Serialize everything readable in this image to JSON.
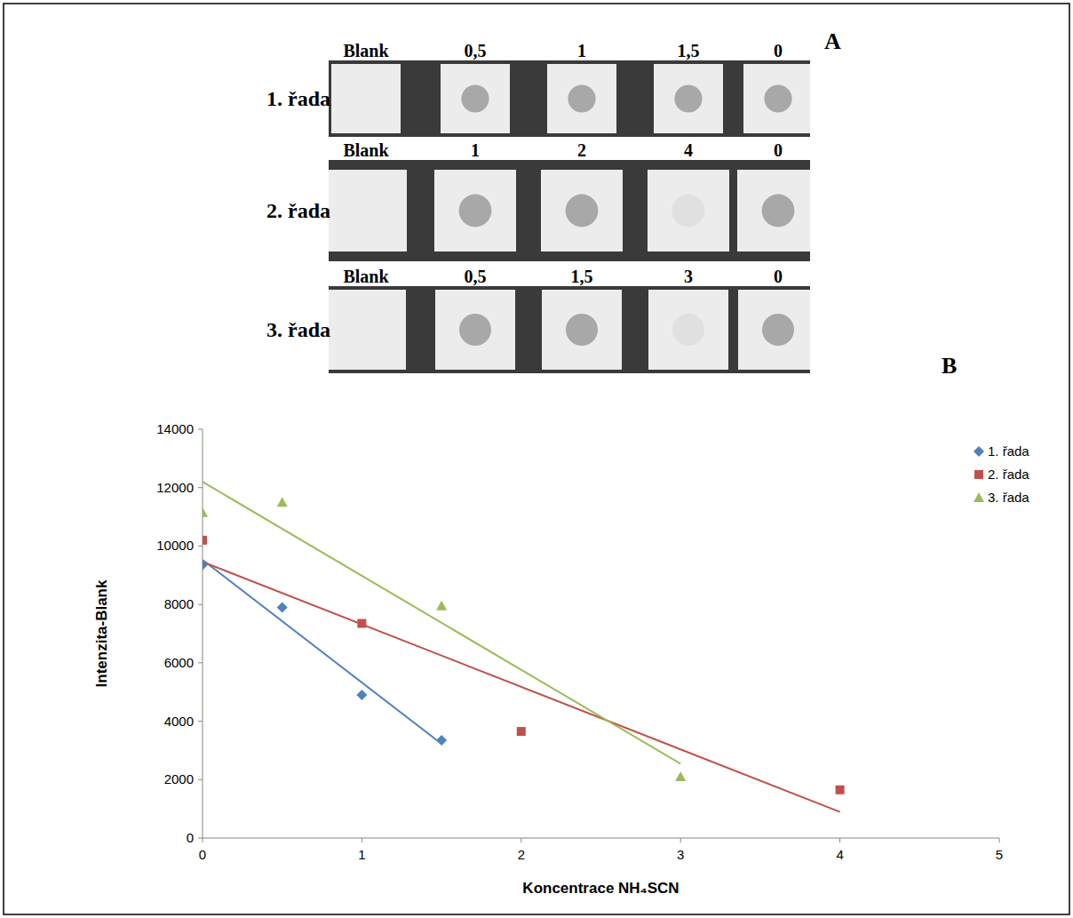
{
  "panel_letters": [
    "A",
    "B"
  ],
  "panel_a": {
    "rows": [
      {
        "name": "1. řada",
        "labels": [
          "Blank",
          "0,5",
          "1",
          "1,5",
          "0"
        ]
      },
      {
        "name": "2. řada",
        "labels": [
          "Blank",
          "1",
          "2",
          "4",
          "0"
        ]
      },
      {
        "name": "3. řada",
        "labels": [
          "Blank",
          "0,5",
          "1,5",
          "3",
          "0"
        ]
      }
    ]
  },
  "chart_data": {
    "type": "scatter",
    "x_label": "Koncentrace NH₄SCN",
    "y_label": "Intenzita-Blank",
    "xlim": [
      0,
      5
    ],
    "xticks": [
      0,
      1,
      2,
      3,
      4,
      5
    ],
    "ylim": [
      0,
      14000
    ],
    "yticks": [
      0,
      2000,
      4000,
      6000,
      8000,
      10000,
      12000,
      14000
    ],
    "grid": false,
    "legend": "upper right",
    "series": [
      {
        "name": "1. řada",
        "color": "#4f81bd",
        "marker": "diamond",
        "line_style": "trendline",
        "x": [
          0,
          0.5,
          1,
          1.5
        ],
        "values": [
          9350,
          7900,
          4900,
          3350
        ]
      },
      {
        "name": "2. řada",
        "color": "#c0504d",
        "marker": "square",
        "line_style": "trendline",
        "x": [
          0,
          1,
          2,
          4
        ],
        "values": [
          10200,
          7350,
          3650,
          1650
        ]
      },
      {
        "name": "3. řada",
        "color": "#9bbb59",
        "marker": "triangle",
        "line_style": "trendline",
        "x": [
          0,
          0.5,
          1.5,
          3
        ],
        "values": [
          11150,
          11500,
          7950,
          2100
        ]
      }
    ]
  }
}
